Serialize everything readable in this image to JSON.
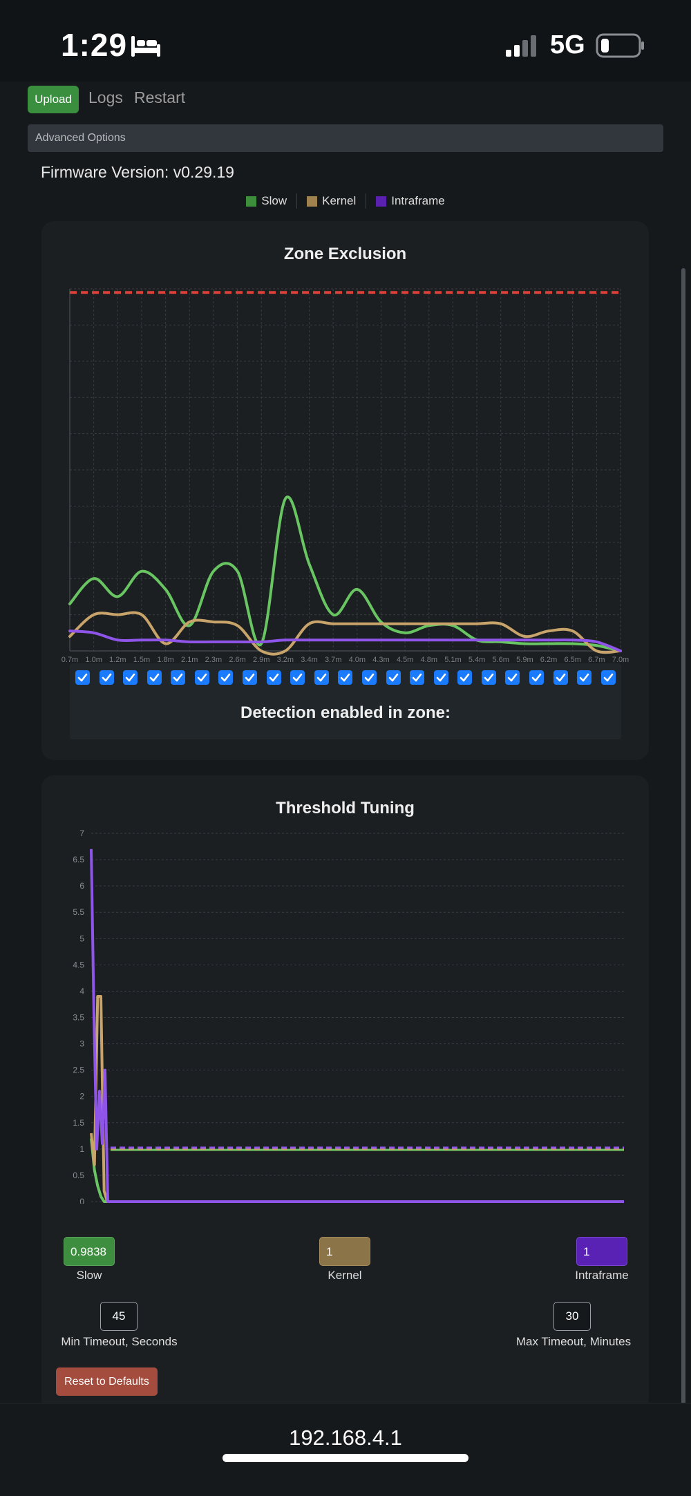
{
  "status_bar": {
    "time": "1:29",
    "network": "5G"
  },
  "nav": {
    "upload_label": "Upload",
    "logs_label": "Logs",
    "restart_label": "Restart"
  },
  "advanced_options_label": "Advanced Options",
  "firmware_label": "Firmware Version: v0.29.19",
  "legend": [
    {
      "name": "Slow",
      "color": "#3c8d3c"
    },
    {
      "name": "Kernel",
      "color": "#a0824f"
    },
    {
      "name": "Intraframe",
      "color": "#5a20b0"
    }
  ],
  "zone_card": {
    "title": "Zone Exclusion",
    "detection_label": "Detection enabled in zone:",
    "zones_enabled": [
      true,
      true,
      true,
      true,
      true,
      true,
      true,
      true,
      true,
      true,
      true,
      true,
      true,
      true,
      true,
      true,
      true,
      true,
      true,
      true,
      true,
      true,
      true
    ]
  },
  "chart_data": [
    {
      "type": "line",
      "title": "Zone Exclusion",
      "categories": [
        "0.7m",
        "1.0m",
        "1.2m",
        "1.5m",
        "1.8m",
        "2.1m",
        "2.3m",
        "2.6m",
        "2.9m",
        "3.2m",
        "3.4m",
        "3.7m",
        "4.0m",
        "4.3m",
        "4.5m",
        "4.8m",
        "5.1m",
        "5.4m",
        "5.6m",
        "5.9m",
        "6.2m",
        "6.5m",
        "6.7m",
        "7.0m"
      ],
      "ylim": [
        0,
        10
      ],
      "grid": true,
      "threshold": 9.9,
      "series": [
        {
          "name": "Slow",
          "color": "#69c462",
          "values": [
            1.3,
            2.0,
            1.5,
            2.2,
            1.7,
            0.7,
            2.2,
            2.2,
            0.2,
            4.2,
            2.4,
            1.0,
            1.7,
            0.8,
            0.5,
            0.7,
            0.7,
            0.3,
            0.25,
            0.2,
            0.2,
            0.2,
            0.15,
            0.0
          ]
        },
        {
          "name": "Kernel",
          "color": "#c8a46a",
          "values": [
            0.4,
            1.0,
            1.0,
            1.0,
            0.2,
            0.8,
            0.8,
            0.7,
            0.0,
            0.0,
            0.75,
            0.75,
            0.75,
            0.75,
            0.75,
            0.75,
            0.75,
            0.75,
            0.75,
            0.4,
            0.55,
            0.55,
            0.0,
            0.0
          ]
        },
        {
          "name": "Intraframe",
          "color": "#8e55e8",
          "values": [
            0.55,
            0.5,
            0.3,
            0.3,
            0.3,
            0.25,
            0.25,
            0.25,
            0.25,
            0.3,
            0.3,
            0.3,
            0.3,
            0.3,
            0.3,
            0.3,
            0.3,
            0.3,
            0.3,
            0.3,
            0.3,
            0.3,
            0.25,
            0.0
          ]
        }
      ]
    },
    {
      "type": "line",
      "title": "Threshold Tuning",
      "yticks": [
        "0",
        "0.5",
        "1",
        "1.5",
        "2",
        "2.5",
        "3",
        "3.5",
        "4",
        "4.5",
        "5",
        "5.5",
        "6",
        "6.5",
        "7"
      ],
      "ylim": [
        0,
        7
      ],
      "grid": true,
      "series": [
        {
          "name": "Slow",
          "color": "#69c462",
          "threshold": 0.9838,
          "values": [
            1.2,
            0.6,
            0.3,
            0.1,
            0.0,
            0.0,
            0.0
          ]
        },
        {
          "name": "Kernel",
          "color": "#c8a46a",
          "threshold": 1,
          "values": [
            1.3,
            0.7,
            3.9,
            3.9,
            0.2,
            0.0,
            0.0
          ]
        },
        {
          "name": "Intraframe",
          "color": "#8e55e8",
          "threshold": 1,
          "values": [
            6.7,
            3.5,
            1.0,
            2.1,
            1.1,
            2.5,
            0.0,
            0.0
          ]
        }
      ]
    }
  ],
  "tuning_card": {
    "title": "Threshold Tuning",
    "slow": {
      "value": "0.9838",
      "label": "Slow",
      "color": "#3d8f3f"
    },
    "kernel": {
      "value": "1",
      "label": "Kernel",
      "color": "#8c7449"
    },
    "intraframe": {
      "value": "1",
      "label": "Intraframe",
      "color": "#5a21b5"
    },
    "min_timeout": {
      "value": "45",
      "label": "Min Timeout, Seconds"
    },
    "max_timeout": {
      "value": "30",
      "label": "Max Timeout, Minutes"
    },
    "reset_label": "Reset to Defaults"
  },
  "url_bar": {
    "address": "192.168.4.1"
  }
}
